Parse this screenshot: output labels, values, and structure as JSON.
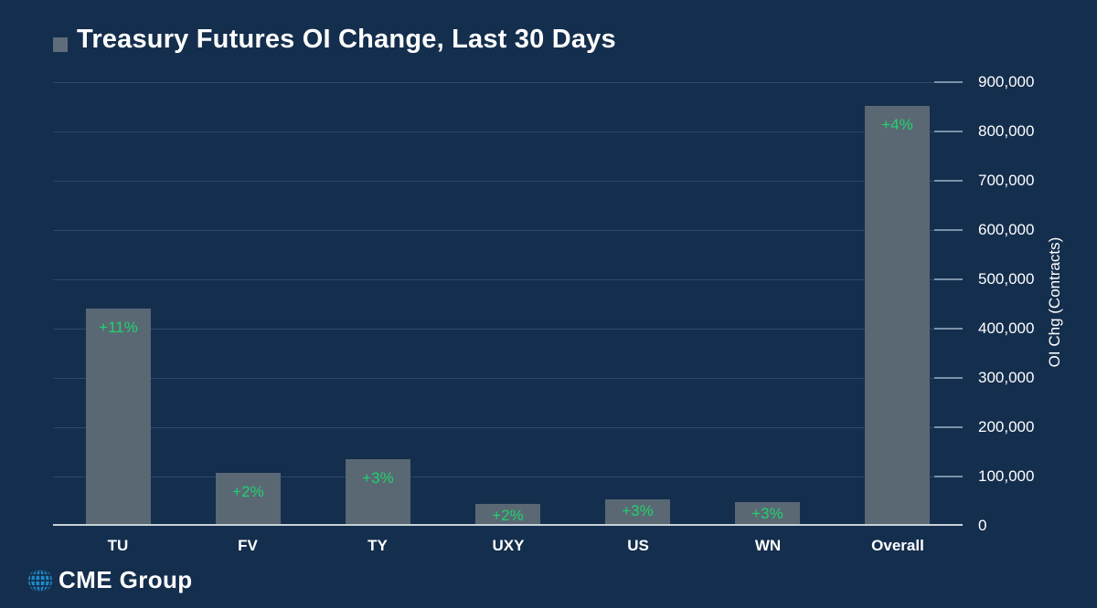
{
  "title": "Treasury Futures OI Change, Last 30 Days",
  "colors": {
    "background": "#142E4D",
    "bar_fill": "#5A6874",
    "gridline": "#264A6E",
    "tick": "#7C92A8",
    "axis_line": "#C9D2DA",
    "data_label_green": "#1FD36C",
    "text": "#FFFFFF",
    "title_bullet": "#5F6D79",
    "logo_blue": "#1D8BC9"
  },
  "chart_data": {
    "type": "bar",
    "title": "Treasury Futures OI Change, Last 30 Days",
    "categories": [
      "TU",
      "FV",
      "TY",
      "UXY",
      "US",
      "WN",
      "Overall"
    ],
    "values": [
      440000,
      108000,
      136000,
      44000,
      54000,
      49000,
      851000
    ],
    "bar_labels": [
      "+11%",
      "+2%",
      "+3%",
      "+2%",
      "+3%",
      "+3%",
      "+4%"
    ],
    "xlabel": "",
    "ylabel": "OI Chg (Contracts)",
    "ylim": [
      0,
      900000
    ],
    "ytick_step": 100000,
    "yticks": [
      "0",
      "100,000",
      "200,000",
      "300,000",
      "400,000",
      "500,000",
      "600,000",
      "700,000",
      "800,000",
      "900,000"
    ],
    "grid": true,
    "legend_position": "none",
    "bar_color": "#5A6874",
    "label_color": "#1FD36C"
  },
  "logo": {
    "text": "CME Group"
  }
}
